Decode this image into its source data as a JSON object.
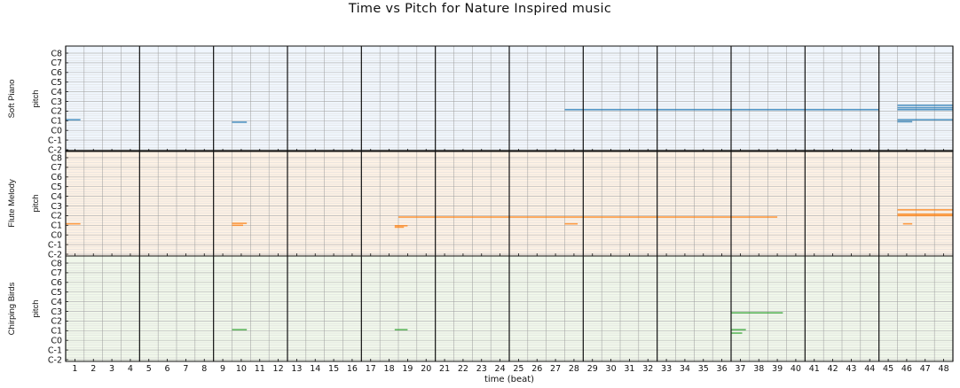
{
  "chart_data": {
    "type": "piano-roll",
    "title": "Time vs Pitch for Nature Inspired music",
    "xlabel": "time (beat)",
    "ylabel": "pitch",
    "xlim": [
      1,
      49
    ],
    "x_ticks": [
      1,
      2,
      3,
      4,
      5,
      6,
      7,
      8,
      9,
      10,
      11,
      12,
      13,
      14,
      15,
      16,
      17,
      18,
      19,
      20,
      21,
      22,
      23,
      24,
      25,
      26,
      27,
      28,
      29,
      30,
      31,
      32,
      33,
      34,
      35,
      36,
      37,
      38,
      39,
      40,
      41,
      42,
      43,
      44,
      45,
      46,
      47,
      48
    ],
    "x_tick_labels": [
      "1",
      "2",
      "3",
      "4",
      "5",
      "6",
      "7",
      "8",
      "9",
      "10",
      "11",
      "12",
      "13",
      "14",
      "15",
      "16",
      "17",
      "18",
      "19",
      "20",
      "21",
      "22",
      "23",
      "24",
      "25",
      "26",
      "27",
      "28",
      "29",
      "30",
      "31",
      "32",
      "33",
      "34",
      "35",
      "36",
      "37",
      "38",
      "39",
      "40",
      "41",
      "42",
      "43",
      "44",
      "45",
      "46",
      "47",
      "48"
    ],
    "bar_lines_every_beats": 4,
    "y_ticks_octave": [
      -2,
      -1,
      0,
      1,
      2,
      3,
      4,
      5,
      6,
      7,
      8
    ],
    "y_tick_labels": [
      "C-2",
      "C-1",
      "C0",
      "C1",
      "C2",
      "C3",
      "C4",
      "C5",
      "C6",
      "C7",
      "C8"
    ],
    "grid": true,
    "tracks": [
      {
        "name": "Soft Piano",
        "background": "#f0f6fd",
        "note_color": "#1f77b4",
        "notes": [
          {
            "start": 1.0,
            "end": 1.8,
            "octave": 1.1
          },
          {
            "start": 10.0,
            "end": 10.8,
            "octave": 0.85
          },
          {
            "start": 28.0,
            "end": 45.0,
            "octave": 2.15
          },
          {
            "start": 46.0,
            "end": 49.0,
            "octave": 2.15
          },
          {
            "start": 46.0,
            "end": 49.0,
            "octave": 2.6
          },
          {
            "start": 46.0,
            "end": 49.0,
            "octave": 2.35
          },
          {
            "start": 46.0,
            "end": 49.0,
            "octave": 1.1
          },
          {
            "start": 46.0,
            "end": 46.8,
            "octave": 0.9
          }
        ]
      },
      {
        "name": "Flute Melody",
        "background": "#fdf1e4",
        "note_color": "#ff7f0e",
        "notes": [
          {
            "start": 1.0,
            "end": 1.8,
            "octave": 1.15
          },
          {
            "start": 10.0,
            "end": 10.8,
            "octave": 1.2
          },
          {
            "start": 10.0,
            "end": 10.6,
            "octave": 1.0
          },
          {
            "start": 18.8,
            "end": 19.5,
            "octave": 0.95
          },
          {
            "start": 18.8,
            "end": 19.3,
            "octave": 0.8
          },
          {
            "start": 19.0,
            "end": 39.5,
            "octave": 1.85
          },
          {
            "start": 28.0,
            "end": 28.7,
            "octave": 1.15
          },
          {
            "start": 46.0,
            "end": 49.0,
            "octave": 2.6
          },
          {
            "start": 46.0,
            "end": 49.0,
            "octave": 2.15
          },
          {
            "start": 46.0,
            "end": 49.0,
            "octave": 2.0
          },
          {
            "start": 46.3,
            "end": 46.8,
            "octave": 1.15
          }
        ]
      },
      {
        "name": "Chirping Birds",
        "background": "#f0f7ea",
        "note_color": "#2ca02c",
        "notes": [
          {
            "start": 10.0,
            "end": 10.8,
            "octave": 1.1
          },
          {
            "start": 18.8,
            "end": 19.5,
            "octave": 1.1
          },
          {
            "start": 37.0,
            "end": 39.8,
            "octave": 2.85
          },
          {
            "start": 37.0,
            "end": 37.8,
            "octave": 1.1
          },
          {
            "start": 37.0,
            "end": 37.6,
            "octave": 0.75
          }
        ]
      }
    ]
  }
}
